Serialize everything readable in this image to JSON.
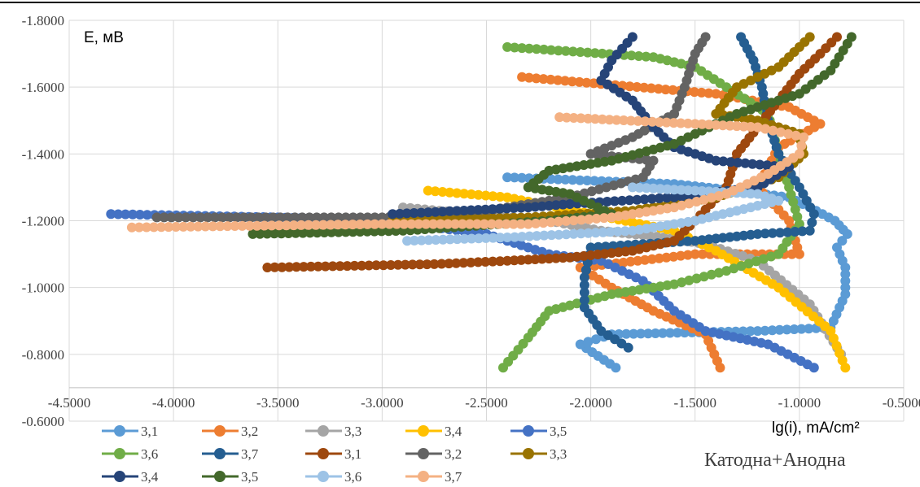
{
  "chart_data": {
    "type": "scatter",
    "ylabel": "E, мВ",
    "xlabel": "lg(i), mA/cm²",
    "annotation": "Катодна+Анодна",
    "xlim": [
      -4.5,
      -0.5
    ],
    "ylim": [
      -0.6,
      -1.8
    ],
    "x_ticks": [
      "-4.5000",
      "-4.0000",
      "-3.5000",
      "-3.0000",
      "-2.5000",
      "-2.0000",
      "-1.5000",
      "-1.0000",
      "-0.5000"
    ],
    "y_ticks": [
      "-1.8000",
      "-1.6000",
      "-1.4000",
      "-1.2000",
      "-1.0000",
      "-0.8000",
      "-0.6000"
    ],
    "grid": true,
    "legend_position": "bottom",
    "series": [
      {
        "name": "3,1",
        "color": "#5B9BD5",
        "points": [
          [
            -1.88,
            -0.76
          ],
          [
            -2.05,
            -0.83
          ],
          [
            -1.9,
            -0.86
          ],
          [
            -1.2,
            -0.87
          ],
          [
            -0.85,
            -0.88
          ],
          [
            -0.78,
            -0.98
          ],
          [
            -0.78,
            -1.06
          ],
          [
            -0.82,
            -1.12
          ],
          [
            -0.77,
            -1.16
          ],
          [
            -0.83,
            -1.2
          ],
          [
            -0.95,
            -1.24
          ],
          [
            -1.05,
            -1.27
          ],
          [
            -1.3,
            -1.29
          ],
          [
            -1.6,
            -1.31
          ],
          [
            -2.4,
            -1.33
          ]
        ]
      },
      {
        "name": "3,2",
        "color": "#ED7D31",
        "points": [
          [
            -1.38,
            -0.76
          ],
          [
            -1.45,
            -0.86
          ],
          [
            -1.7,
            -0.93
          ],
          [
            -1.9,
            -1.0
          ],
          [
            -2.05,
            -1.06
          ],
          [
            -1.5,
            -1.1
          ],
          [
            -1.0,
            -1.1
          ],
          [
            -1.05,
            -1.2
          ],
          [
            -1.2,
            -1.3
          ],
          [
            -1.1,
            -1.42
          ],
          [
            -0.9,
            -1.49
          ],
          [
            -1.05,
            -1.54
          ],
          [
            -1.4,
            -1.58
          ],
          [
            -2.33,
            -1.63
          ]
        ]
      },
      {
        "name": "3,3",
        "color": "#A5A5A5",
        "points": [
          [
            -0.8,
            -0.8
          ],
          [
            -0.95,
            -0.95
          ],
          [
            -1.2,
            -1.08
          ],
          [
            -1.45,
            -1.13
          ],
          [
            -1.65,
            -1.15
          ],
          [
            -1.95,
            -1.17
          ],
          [
            -2.2,
            -1.2
          ],
          [
            -2.9,
            -1.24
          ]
        ]
      },
      {
        "name": "3,4",
        "color": "#FFC000",
        "points": [
          [
            -0.78,
            -0.76
          ],
          [
            -0.85,
            -0.87
          ],
          [
            -1.1,
            -1.0
          ],
          [
            -1.4,
            -1.11
          ],
          [
            -1.6,
            -1.17
          ],
          [
            -2.0,
            -1.22
          ],
          [
            -2.4,
            -1.27
          ],
          [
            -2.78,
            -1.29
          ]
        ]
      },
      {
        "name": "3,5",
        "color": "#4472C4",
        "points": [
          [
            -0.93,
            -0.76
          ],
          [
            -1.15,
            -0.83
          ],
          [
            -1.45,
            -0.87
          ],
          [
            -1.6,
            -0.93
          ],
          [
            -1.75,
            -1.02
          ],
          [
            -1.95,
            -1.08
          ],
          [
            -2.2,
            -1.1
          ],
          [
            -2.5,
            -1.16
          ],
          [
            -3.0,
            -1.2
          ],
          [
            -3.5,
            -1.21
          ],
          [
            -4.3,
            -1.22
          ]
        ]
      },
      {
        "name": "3,6",
        "color": "#70AD47",
        "points": [
          [
            -2.42,
            -0.76
          ],
          [
            -2.3,
            -0.85
          ],
          [
            -2.2,
            -0.93
          ],
          [
            -1.9,
            -0.98
          ],
          [
            -1.6,
            -1.01
          ],
          [
            -1.35,
            -1.05
          ],
          [
            -1.1,
            -1.1
          ],
          [
            -1.0,
            -1.19
          ],
          [
            -1.05,
            -1.3
          ],
          [
            -1.1,
            -1.4
          ],
          [
            -1.15,
            -1.52
          ],
          [
            -1.35,
            -1.6
          ],
          [
            -1.5,
            -1.66
          ],
          [
            -1.7,
            -1.69
          ],
          [
            -2.4,
            -1.72
          ]
        ]
      },
      {
        "name": "3,7",
        "color": "#255E91",
        "points": [
          [
            -1.82,
            -0.82
          ],
          [
            -1.95,
            -0.87
          ],
          [
            -2.03,
            -0.94
          ],
          [
            -2.03,
            -1.03
          ],
          [
            -2.0,
            -1.12
          ],
          [
            -1.5,
            -1.14
          ],
          [
            -1.2,
            -1.16
          ],
          [
            -0.95,
            -1.17
          ],
          [
            -0.93,
            -1.22
          ],
          [
            -1.0,
            -1.3
          ],
          [
            -1.1,
            -1.4
          ],
          [
            -1.15,
            -1.5
          ],
          [
            -1.18,
            -1.6
          ],
          [
            -1.22,
            -1.68
          ],
          [
            -1.28,
            -1.75
          ]
        ]
      },
      {
        "name": "3,1",
        "color": "#9E480E",
        "points": [
          [
            -3.55,
            -1.06
          ],
          [
            -2.75,
            -1.07
          ],
          [
            -2.4,
            -1.08
          ],
          [
            -2.1,
            -1.09
          ],
          [
            -1.8,
            -1.11
          ],
          [
            -1.6,
            -1.14
          ],
          [
            -1.5,
            -1.2
          ],
          [
            -1.35,
            -1.3
          ],
          [
            -1.3,
            -1.4
          ],
          [
            -1.2,
            -1.48
          ],
          [
            -1.1,
            -1.56
          ],
          [
            -1.0,
            -1.64
          ],
          [
            -0.9,
            -1.7
          ],
          [
            -0.82,
            -1.75
          ]
        ]
      },
      {
        "name": "3,2",
        "color": "#636363",
        "points": [
          [
            -4.08,
            -1.21
          ],
          [
            -3.0,
            -1.21
          ],
          [
            -2.5,
            -1.23
          ],
          [
            -2.1,
            -1.27
          ],
          [
            -1.75,
            -1.33
          ],
          [
            -1.7,
            -1.38
          ],
          [
            -2.0,
            -1.4
          ],
          [
            -1.8,
            -1.45
          ],
          [
            -1.6,
            -1.52
          ],
          [
            -1.55,
            -1.6
          ],
          [
            -1.5,
            -1.7
          ],
          [
            -1.45,
            -1.75
          ]
        ]
      },
      {
        "name": "3,3",
        "color": "#997300",
        "points": [
          [
            -2.95,
            -1.2
          ],
          [
            -2.3,
            -1.21
          ],
          [
            -1.8,
            -1.23
          ],
          [
            -1.4,
            -1.27
          ],
          [
            -1.1,
            -1.33
          ],
          [
            -0.98,
            -1.4
          ],
          [
            -1.0,
            -1.46
          ],
          [
            -1.2,
            -1.5
          ],
          [
            -1.4,
            -1.52
          ],
          [
            -1.3,
            -1.6
          ],
          [
            -1.1,
            -1.66
          ],
          [
            -0.95,
            -1.75
          ]
        ]
      },
      {
        "name": "3,4",
        "color": "#264478",
        "points": [
          [
            -2.95,
            -1.22
          ],
          [
            -2.3,
            -1.24
          ],
          [
            -2.1,
            -1.25
          ],
          [
            -1.6,
            -1.27
          ],
          [
            -1.2,
            -1.3
          ],
          [
            -1.05,
            -1.36
          ],
          [
            -1.4,
            -1.38
          ],
          [
            -1.6,
            -1.42
          ],
          [
            -1.7,
            -1.48
          ],
          [
            -1.8,
            -1.56
          ],
          [
            -1.95,
            -1.62
          ],
          [
            -1.9,
            -1.68
          ],
          [
            -1.8,
            -1.75
          ]
        ]
      },
      {
        "name": "3,5",
        "color": "#43682B",
        "points": [
          [
            -3.62,
            -1.16
          ],
          [
            -2.9,
            -1.17
          ],
          [
            -2.2,
            -1.2
          ],
          [
            -1.9,
            -1.22
          ],
          [
            -2.1,
            -1.28
          ],
          [
            -2.3,
            -1.3
          ],
          [
            -2.2,
            -1.35
          ],
          [
            -1.9,
            -1.38
          ],
          [
            -1.6,
            -1.43
          ],
          [
            -1.3,
            -1.52
          ],
          [
            -1.0,
            -1.58
          ],
          [
            -0.85,
            -1.65
          ],
          [
            -0.75,
            -1.75
          ]
        ]
      },
      {
        "name": "3,6",
        "color": "#9DC3E6",
        "points": [
          [
            -2.88,
            -1.14
          ],
          [
            -2.4,
            -1.15
          ],
          [
            -1.8,
            -1.17
          ],
          [
            -1.5,
            -1.2
          ],
          [
            -1.3,
            -1.23
          ],
          [
            -1.1,
            -1.26
          ],
          [
            -1.2,
            -1.28
          ],
          [
            -1.5,
            -1.29
          ],
          [
            -1.8,
            -1.3
          ]
        ]
      },
      {
        "name": "3,7",
        "color": "#F4B183",
        "points": [
          [
            -4.2,
            -1.18
          ],
          [
            -3.0,
            -1.19
          ],
          [
            -2.3,
            -1.19
          ],
          [
            -1.9,
            -1.21
          ],
          [
            -1.6,
            -1.24
          ],
          [
            -1.35,
            -1.28
          ],
          [
            -1.15,
            -1.34
          ],
          [
            -1.0,
            -1.4
          ],
          [
            -0.98,
            -1.45
          ],
          [
            -1.2,
            -1.48
          ],
          [
            -1.5,
            -1.49
          ],
          [
            -2.15,
            -1.51
          ]
        ]
      }
    ]
  }
}
